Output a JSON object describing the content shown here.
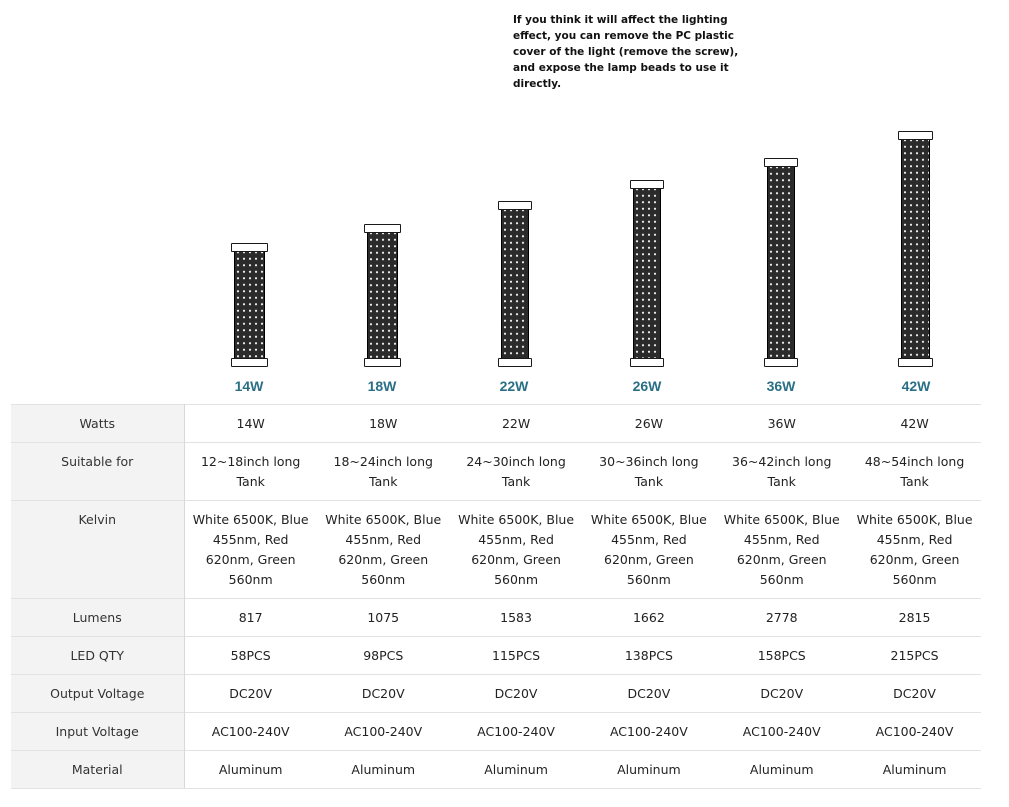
{
  "note": {
    "lines": [
      "If you think it will affect the lighting",
      "effect, you can remove the PC plastic",
      "cover of the light (remove the screw),",
      "and expose the lamp beads to use it",
      "directly."
    ]
  },
  "lamps": [
    {
      "label": "14W"
    },
    {
      "label": "18W"
    },
    {
      "label": "22W"
    },
    {
      "label": "26W"
    },
    {
      "label": "36W"
    },
    {
      "label": "42W"
    }
  ],
  "table": {
    "rows": [
      {
        "header": "Watts",
        "cells": [
          [
            "14W"
          ],
          [
            "18W"
          ],
          [
            "22W"
          ],
          [
            "26W"
          ],
          [
            "36W"
          ],
          [
            "42W"
          ]
        ]
      },
      {
        "header": "Suitable for",
        "cells": [
          [
            "12~18inch long",
            "Tank"
          ],
          [
            "18~24inch long",
            "Tank"
          ],
          [
            "24~30inch long",
            "Tank"
          ],
          [
            "30~36inch long",
            "Tank"
          ],
          [
            "36~42inch long",
            "Tank"
          ],
          [
            "48~54inch long",
            "Tank"
          ]
        ]
      },
      {
        "header": "Kelvin",
        "cells": [
          [
            "White 6500K, Blue",
            "455nm, Red",
            "620nm, Green",
            "560nm"
          ],
          [
            "White 6500K, Blue",
            "455nm, Red",
            "620nm, Green",
            "560nm"
          ],
          [
            "White 6500K, Blue",
            "455nm, Red",
            "620nm, Green",
            "560nm"
          ],
          [
            "White 6500K, Blue",
            "455nm, Red",
            "620nm, Green",
            "560nm"
          ],
          [
            "White 6500K, Blue",
            "455nm, Red",
            "620nm, Green",
            "560nm"
          ],
          [
            "White 6500K, Blue",
            "455nm, Red",
            "620nm, Green",
            "560nm"
          ]
        ]
      },
      {
        "header": "Lumens",
        "cells": [
          [
            "817"
          ],
          [
            "1075"
          ],
          [
            "1583"
          ],
          [
            "1662"
          ],
          [
            "2778"
          ],
          [
            "2815"
          ]
        ]
      },
      {
        "header": "LED QTY",
        "cells": [
          [
            "58PCS"
          ],
          [
            "98PCS"
          ],
          [
            "115PCS"
          ],
          [
            "138PCS"
          ],
          [
            "158PCS"
          ],
          [
            "215PCS"
          ]
        ]
      },
      {
        "header": "Output Voltage",
        "cells": [
          [
            "DC20V"
          ],
          [
            "DC20V"
          ],
          [
            "DC20V"
          ],
          [
            "DC20V"
          ],
          [
            "DC20V"
          ],
          [
            "DC20V"
          ]
        ]
      },
      {
        "header": "Input Voltage",
        "cells": [
          [
            "AC100-240V"
          ],
          [
            "AC100-240V"
          ],
          [
            "AC100-240V"
          ],
          [
            "AC100-240V"
          ],
          [
            "AC100-240V"
          ],
          [
            "AC100-240V"
          ]
        ]
      },
      {
        "header": "Material",
        "cells": [
          [
            "Aluminum"
          ],
          [
            "Aluminum"
          ],
          [
            "Aluminum"
          ],
          [
            "Aluminum"
          ],
          [
            "Aluminum"
          ],
          [
            "Aluminum"
          ]
        ]
      }
    ]
  },
  "colors": {
    "label_accent": "#2a6f86",
    "header_bg": "#f3f3f3",
    "border": "#e2e2e2"
  }
}
